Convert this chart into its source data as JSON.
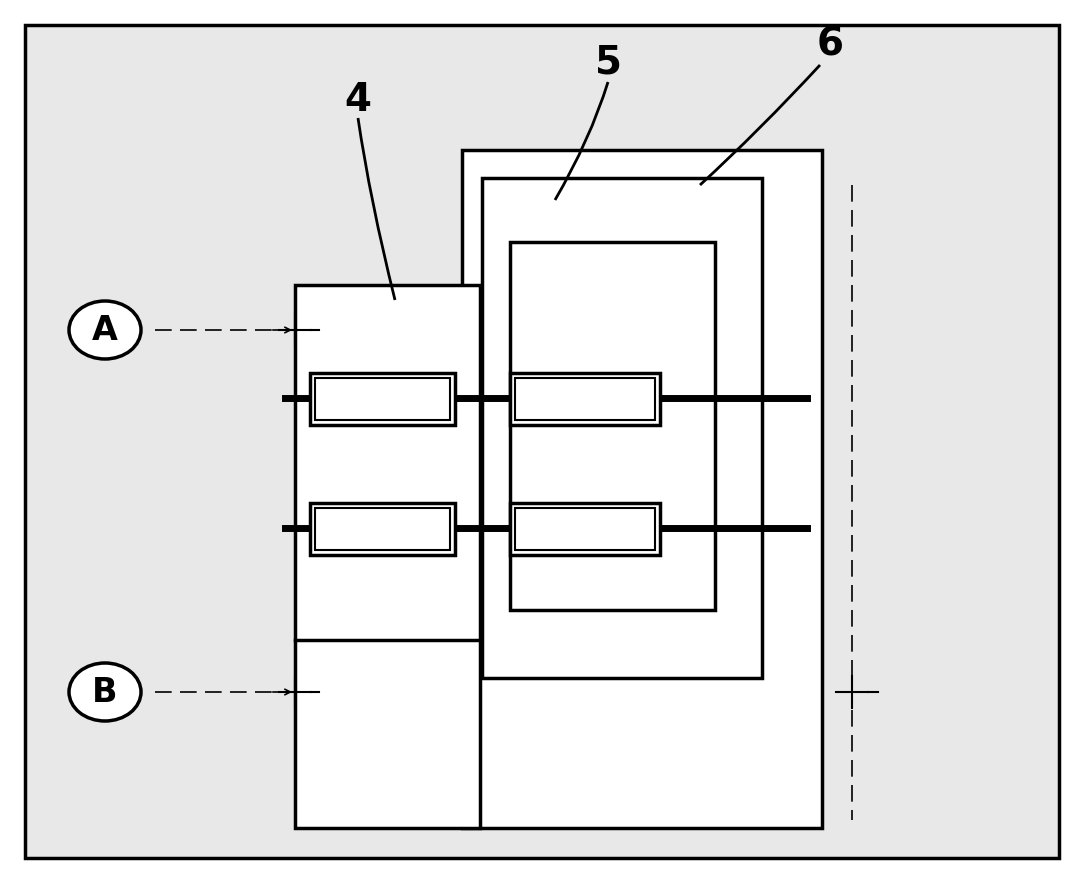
{
  "bg_color": "#ffffff",
  "border_color": "#000000",
  "line_color": "#000000",
  "label_4": "4",
  "label_5": "5",
  "label_6": "6",
  "label_A": "A",
  "label_B": "B",
  "figsize": [
    10.84,
    8.82
  ],
  "dpi": 100
}
